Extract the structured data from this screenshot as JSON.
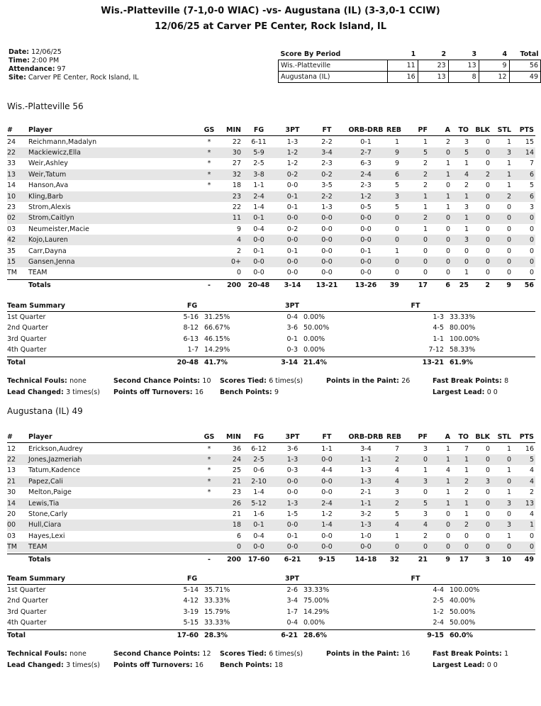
{
  "header": {
    "title1": "Wis.-Platteville (7-1,0-0 WIAC) -vs- Augustana (IL) (3-3,0-1 CCIW)",
    "title2": "12/06/25 at Carver PE Center, Rock Island, IL"
  },
  "info": [
    {
      "label": "Date:",
      "value": "12/06/25"
    },
    {
      "label": "Time:",
      "value": "2:00 PM"
    },
    {
      "label": "Attendance:",
      "value": "97"
    },
    {
      "label": "Site:",
      "value": "Carver PE Center, Rock Island, IL"
    }
  ],
  "score_by_period": {
    "header": [
      "Score By Period",
      "1",
      "2",
      "3",
      "4",
      "Total"
    ],
    "rows": [
      [
        "Wis.-Platteville",
        "11",
        "23",
        "13",
        "9",
        "56"
      ],
      [
        "Augustana (IL)",
        "16",
        "13",
        "8",
        "12",
        "49"
      ]
    ]
  },
  "box_header": [
    "#",
    "Player",
    "GS",
    "MIN",
    "FG",
    "3PT",
    "FT",
    "ORB-DRB",
    "REB",
    "PF",
    "A",
    "TO",
    "BLK",
    "STL",
    "PTS"
  ],
  "summary_header": [
    "Team Summary",
    "FG",
    "3PT",
    "FT"
  ],
  "teams": [
    {
      "heading": "Wis.-Platteville 56",
      "players": [
        [
          "24",
          "Reichmann,Madalyn",
          "*",
          "22",
          "6-11",
          "1-3",
          "2-2",
          "0-1",
          "1",
          "1",
          "2",
          "3",
          "0",
          "1",
          "15"
        ],
        [
          "22",
          "Mackiewicz,Ella",
          "*",
          "30",
          "5-9",
          "1-2",
          "3-4",
          "2-7",
          "9",
          "5",
          "0",
          "5",
          "0",
          "3",
          "14"
        ],
        [
          "33",
          "Weir,Ashley",
          "*",
          "27",
          "2-5",
          "1-2",
          "2-3",
          "6-3",
          "9",
          "2",
          "1",
          "1",
          "0",
          "1",
          "7"
        ],
        [
          "13",
          "Weir,Tatum",
          "*",
          "32",
          "3-8",
          "0-2",
          "0-2",
          "2-4",
          "6",
          "2",
          "1",
          "4",
          "2",
          "1",
          "6"
        ],
        [
          "14",
          "Hanson,Ava",
          "*",
          "18",
          "1-1",
          "0-0",
          "3-5",
          "2-3",
          "5",
          "2",
          "0",
          "2",
          "0",
          "1",
          "5"
        ],
        [
          "10",
          "Kling,Barb",
          "",
          "23",
          "2-4",
          "0-1",
          "2-2",
          "1-2",
          "3",
          "1",
          "1",
          "1",
          "0",
          "2",
          "6"
        ],
        [
          "23",
          "Strom,Alexis",
          "",
          "22",
          "1-4",
          "0-1",
          "1-3",
          "0-5",
          "5",
          "1",
          "1",
          "3",
          "0",
          "0",
          "3"
        ],
        [
          "02",
          "Strom,Caitlyn",
          "",
          "11",
          "0-1",
          "0-0",
          "0-0",
          "0-0",
          "0",
          "2",
          "0",
          "1",
          "0",
          "0",
          "0"
        ],
        [
          "03",
          "Neumeister,Macie",
          "",
          "9",
          "0-4",
          "0-2",
          "0-0",
          "0-0",
          "0",
          "1",
          "0",
          "1",
          "0",
          "0",
          "0"
        ],
        [
          "42",
          "Kojo,Lauren",
          "",
          "4",
          "0-0",
          "0-0",
          "0-0",
          "0-0",
          "0",
          "0",
          "0",
          "3",
          "0",
          "0",
          "0"
        ],
        [
          "35",
          "Carr,Dayna",
          "",
          "2",
          "0-1",
          "0-1",
          "0-0",
          "0-1",
          "1",
          "0",
          "0",
          "0",
          "0",
          "0",
          "0"
        ],
        [
          "15",
          "Gansen,Jenna",
          "",
          "0+",
          "0-0",
          "0-0",
          "0-0",
          "0-0",
          "0",
          "0",
          "0",
          "0",
          "0",
          "0",
          "0"
        ],
        [
          "TM",
          "TEAM",
          "",
          "0",
          "0-0",
          "0-0",
          "0-0",
          "0-0",
          "0",
          "0",
          "0",
          "1",
          "0",
          "0",
          "0"
        ]
      ],
      "totals": [
        "",
        "Totals",
        "-",
        "200",
        "20-48",
        "3-14",
        "13-21",
        "13-26",
        "39",
        "17",
        "6",
        "25",
        "2",
        "9",
        "56"
      ],
      "summary": [
        [
          "1st Quarter",
          "5-16",
          "31.25%",
          "0-4",
          "0.00%",
          "1-3",
          "33.33%"
        ],
        [
          "2nd Quarter",
          "8-12",
          "66.67%",
          "3-6",
          "50.00%",
          "4-5",
          "80.00%"
        ],
        [
          "3rd Quarter",
          "6-13",
          "46.15%",
          "0-1",
          "0.00%",
          "1-1",
          "100.00%"
        ],
        [
          "4th Quarter",
          "1-7",
          "14.29%",
          "0-3",
          "0.00%",
          "7-12",
          "58.33%"
        ]
      ],
      "summary_total": [
        "Total",
        "20-48",
        "41.7%",
        "3-14",
        "21.4%",
        "13-21",
        "61.9%"
      ],
      "misc": [
        [
          "Technical Fouls:",
          "none"
        ],
        [
          "Second Chance Points:",
          "10"
        ],
        [
          "Scores Tied:",
          "6 times(s)"
        ],
        [
          "Points in the Paint:",
          "26"
        ],
        [
          "Fast Break Points:",
          "8"
        ],
        [
          "Lead Changed:",
          "3 times(s)"
        ],
        [
          "Points off Turnovers:",
          "16"
        ],
        [
          "Bench Points:",
          "9"
        ],
        [
          "Largest Lead:",
          "0 0"
        ]
      ]
    },
    {
      "heading": "Augustana (IL) 49",
      "players": [
        [
          "12",
          "Erickson,Audrey",
          "*",
          "36",
          "6-12",
          "3-6",
          "1-1",
          "3-4",
          "7",
          "3",
          "1",
          "7",
          "0",
          "1",
          "16"
        ],
        [
          "22",
          "Jones,Jazmeriah",
          "*",
          "24",
          "2-5",
          "1-3",
          "0-0",
          "1-1",
          "2",
          "0",
          "1",
          "1",
          "0",
          "0",
          "5"
        ],
        [
          "13",
          "Tatum,Kadence",
          "*",
          "25",
          "0-6",
          "0-3",
          "4-4",
          "1-3",
          "4",
          "1",
          "4",
          "1",
          "0",
          "1",
          "4"
        ],
        [
          "21",
          "Papez,Cali",
          "*",
          "21",
          "2-10",
          "0-0",
          "0-0",
          "1-3",
          "4",
          "3",
          "1",
          "2",
          "3",
          "0",
          "4"
        ],
        [
          "30",
          "Melton,Paige",
          "*",
          "23",
          "1-4",
          "0-0",
          "0-0",
          "2-1",
          "3",
          "0",
          "1",
          "2",
          "0",
          "1",
          "2"
        ],
        [
          "14",
          "Lewis,Tia",
          "",
          "26",
          "5-12",
          "1-3",
          "2-4",
          "1-1",
          "2",
          "5",
          "1",
          "1",
          "0",
          "3",
          "13"
        ],
        [
          "20",
          "Stone,Carly",
          "",
          "21",
          "1-6",
          "1-5",
          "1-2",
          "3-2",
          "5",
          "3",
          "0",
          "1",
          "0",
          "0",
          "4"
        ],
        [
          "00",
          "Hull,Ciara",
          "",
          "18",
          "0-1",
          "0-0",
          "1-4",
          "1-3",
          "4",
          "4",
          "0",
          "2",
          "0",
          "3",
          "1"
        ],
        [
          "03",
          "Hayes,Lexi",
          "",
          "6",
          "0-4",
          "0-1",
          "0-0",
          "1-0",
          "1",
          "2",
          "0",
          "0",
          "0",
          "1",
          "0"
        ],
        [
          "TM",
          "TEAM",
          "",
          "0",
          "0-0",
          "0-0",
          "0-0",
          "0-0",
          "0",
          "0",
          "0",
          "0",
          "0",
          "0",
          "0"
        ]
      ],
      "totals": [
        "",
        "Totals",
        "-",
        "200",
        "17-60",
        "6-21",
        "9-15",
        "14-18",
        "32",
        "21",
        "9",
        "17",
        "3",
        "10",
        "49"
      ],
      "summary": [
        [
          "1st Quarter",
          "5-14",
          "35.71%",
          "2-6",
          "33.33%",
          "4-4",
          "100.00%"
        ],
        [
          "2nd Quarter",
          "4-12",
          "33.33%",
          "3-4",
          "75.00%",
          "2-5",
          "40.00%"
        ],
        [
          "3rd Quarter",
          "3-19",
          "15.79%",
          "1-7",
          "14.29%",
          "1-2",
          "50.00%"
        ],
        [
          "4th Quarter",
          "5-15",
          "33.33%",
          "0-4",
          "0.00%",
          "2-4",
          "50.00%"
        ]
      ],
      "summary_total": [
        "Total",
        "17-60",
        "28.3%",
        "6-21",
        "28.6%",
        "9-15",
        "60.0%"
      ],
      "misc": [
        [
          "Technical Fouls:",
          "none"
        ],
        [
          "Second Chance Points:",
          "12"
        ],
        [
          "Scores Tied:",
          "6 times(s)"
        ],
        [
          "Points in the Paint:",
          "16"
        ],
        [
          "Fast Break Points:",
          "1"
        ],
        [
          "Lead Changed:",
          "3 times(s)"
        ],
        [
          "Points off Turnovers:",
          "16"
        ],
        [
          "Bench Points:",
          "18"
        ],
        [
          "Largest Lead:",
          "0 0"
        ]
      ]
    }
  ]
}
